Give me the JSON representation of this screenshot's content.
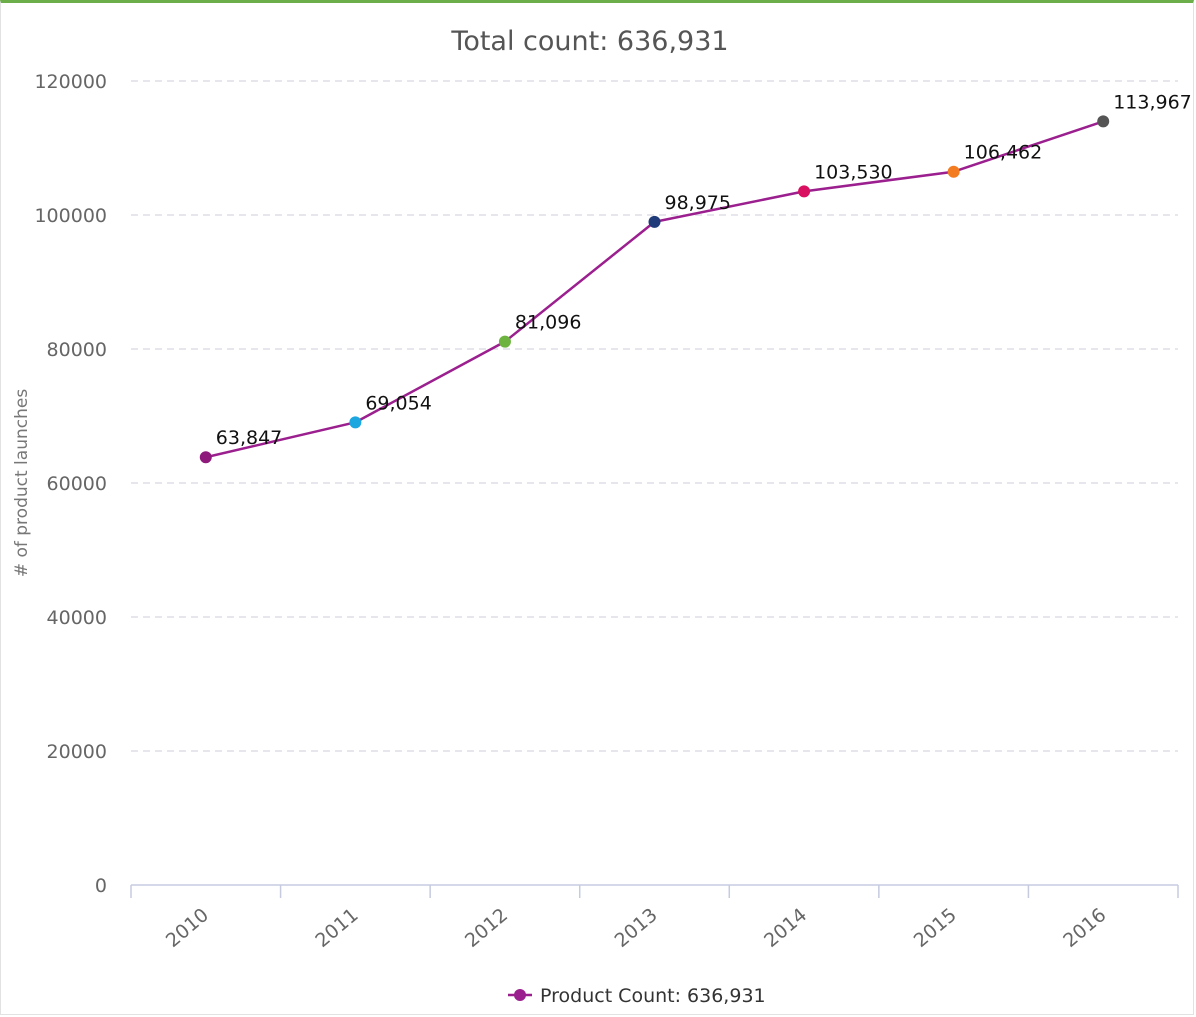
{
  "chart_data": {
    "type": "line",
    "title": "Total count: 636,931",
    "xlabel": "",
    "ylabel": "# of product launches",
    "ylim": [
      0,
      120000
    ],
    "yticks": [
      0,
      20000,
      40000,
      60000,
      80000,
      100000,
      120000
    ],
    "grid": "horizontal dashed",
    "categories": [
      "2010",
      "2011",
      "2012",
      "2013",
      "2014",
      "2015",
      "2016"
    ],
    "series": [
      {
        "name": "Product Count: 636,931",
        "color": "#9b1f8e",
        "values": [
          63847,
          69054,
          81096,
          98975,
          103530,
          106462,
          113967
        ],
        "value_labels": [
          "63,847",
          "69,054",
          "81,096",
          "98,975",
          "103,530",
          "106,462",
          "113,967"
        ],
        "point_colors": [
          "#8e1b7c",
          "#1ca7e0",
          "#6cb33f",
          "#1f3b7a",
          "#d9105f",
          "#f47c20",
          "#555555"
        ]
      }
    ],
    "legend": "bottom-center"
  }
}
